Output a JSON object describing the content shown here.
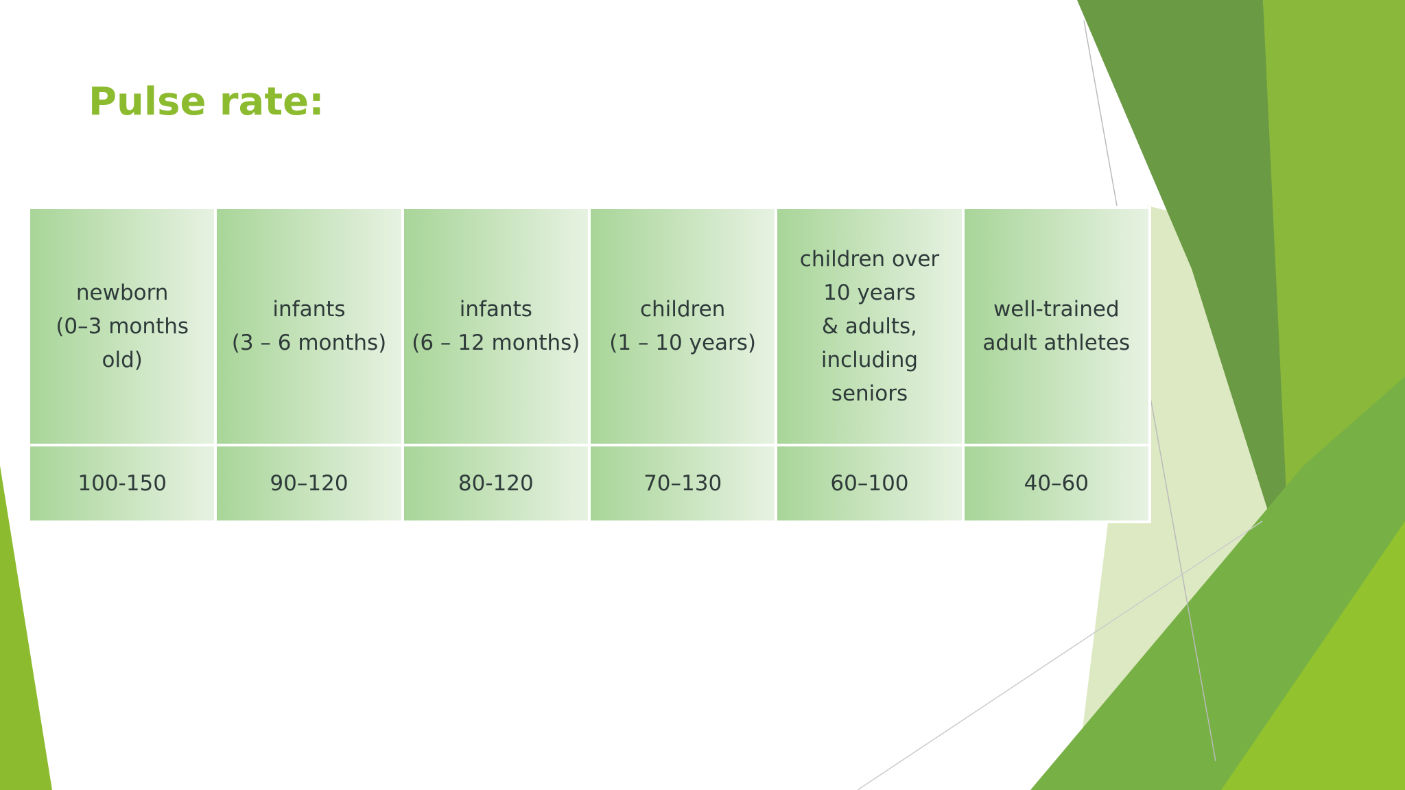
{
  "title": "Pulse rate:",
  "table": {
    "rows": [
      [
        "newborn\n(0–3 months\nold)",
        "infants\n(3 – 6 months)",
        "infants\n(6 – 12 months)",
        "children\n(1 – 10 years)",
        "children over\n10 years\n& adults,\nincluding\nseniors",
        "well-trained\nadult athletes"
      ],
      [
        "100-150",
        "90–120",
        "80-120",
        "70–130",
        "60–100",
        "40–60"
      ]
    ]
  }
}
